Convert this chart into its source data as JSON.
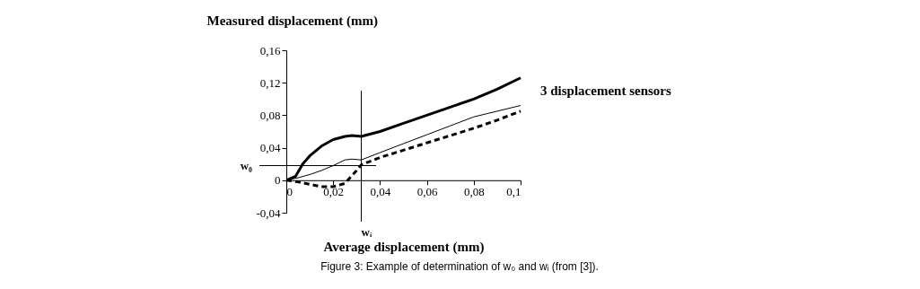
{
  "chart_data": {
    "type": "line",
    "xlabel": "Average displacement (mm)",
    "ylabel": "Measured displacement (mm)",
    "xlim": [
      0,
      0.1
    ],
    "ylim": [
      -0.04,
      0.16
    ],
    "xticks": [
      0,
      {
        "value": 0.02,
        "label": "0,02"
      },
      {
        "value": 0.04,
        "label": "0,04"
      },
      {
        "value": 0.06,
        "label": "0,06"
      },
      {
        "value": 0.08,
        "label": "0,08"
      },
      {
        "value": 0.1,
        "label": "0,1"
      }
    ],
    "yticks": [
      {
        "value": -0.04,
        "label": "-0,04"
      },
      0,
      {
        "value": 0.04,
        "label": "0,04"
      },
      {
        "value": 0.08,
        "label": "0,08"
      },
      {
        "value": 0.12,
        "label": "0,12"
      },
      {
        "value": 0.16,
        "label": "0,16"
      }
    ],
    "grid": false,
    "series": [
      {
        "color": "#000000",
        "line_style": "solid",
        "x": [
          0,
          0.004,
          0.007,
          0.01,
          0.015,
          0.02,
          0.025,
          0.028,
          0.032,
          0.04,
          0.05,
          0.06,
          0.07,
          0.08,
          0.09,
          0.1
        ],
        "values": [
          0,
          0.005,
          0.02,
          0.03,
          0.042,
          0.05,
          0.054,
          0.055,
          0.054,
          0.06,
          0.07,
          0.08,
          0.09,
          0.1,
          0.112,
          0.126
        ]
      },
      {
        "color": "#000000",
        "line_style": "solid",
        "x": [
          0,
          0.005,
          0.01,
          0.015,
          0.02,
          0.025,
          0.028,
          0.032,
          0.04,
          0.05,
          0.06,
          0.07,
          0.08,
          0.09,
          0.1
        ],
        "values": [
          0,
          0.003,
          0.007,
          0.012,
          0.018,
          0.025,
          0.026,
          0.025,
          0.034,
          0.045,
          0.056,
          0.067,
          0.078,
          0.085,
          0.092
        ]
      },
      {
        "color": "#000000",
        "line_style": "dashed",
        "x": [
          0,
          0.005,
          0.01,
          0.015,
          0.02,
          0.025,
          0.03,
          0.032,
          0.04,
          0.05,
          0.06,
          0.07,
          0.08,
          0.09,
          0.1
        ],
        "values": [
          0,
          -0.002,
          -0.005,
          -0.008,
          -0.008,
          -0.004,
          0.012,
          0.019,
          0.028,
          0.037,
          0.046,
          0.055,
          0.064,
          0.074,
          0.085
        ]
      }
    ],
    "ref_lines": [
      {
        "axis": "y",
        "value": 0.018,
        "label": "w₀"
      },
      {
        "axis": "x",
        "value": 0.032,
        "label": "wᵢ"
      }
    ],
    "annotations": [
      "3 displacement sensors",
      "Figure 3: Example of determination of w₀ and wᵢ (from [3])."
    ]
  }
}
